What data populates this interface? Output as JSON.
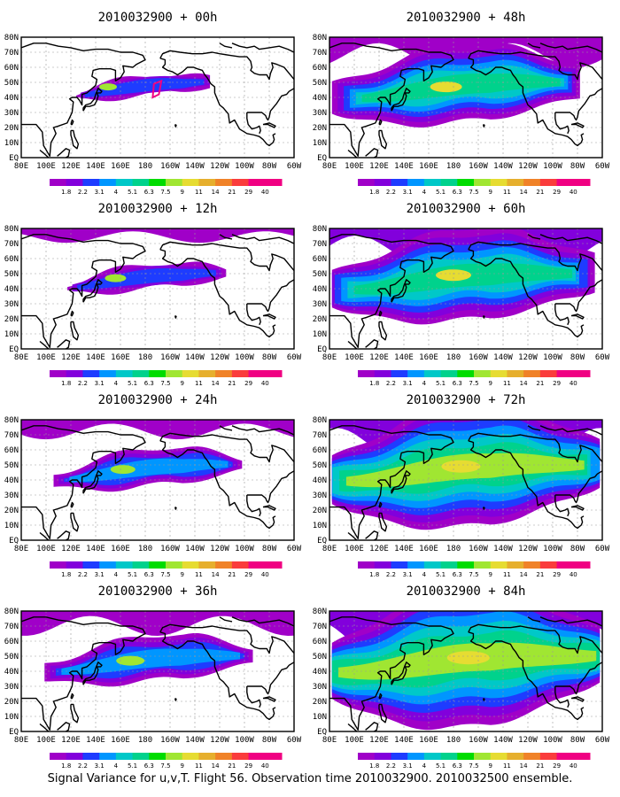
{
  "panels": [
    {
      "title": "2010032900 + 00h",
      "level": 0
    },
    {
      "title": "2010032900 + 48h",
      "level": 4
    },
    {
      "title": "2010032900 + 12h",
      "level": 1
    },
    {
      "title": "2010032900 + 60h",
      "level": 5
    },
    {
      "title": "2010032900 + 24h",
      "level": 2
    },
    {
      "title": "2010032900 + 72h",
      "level": 6
    },
    {
      "title": "2010032900 + 36h",
      "level": 3
    },
    {
      "title": "2010032900 + 84h",
      "level": 7
    }
  ],
  "lat_labels": [
    "80N",
    "70N",
    "60N",
    "50N",
    "40N",
    "30N",
    "20N",
    "10N",
    "EQ"
  ],
  "lon_labels": [
    "80E",
    "100E",
    "120E",
    "140E",
    "160E",
    "180",
    "160W",
    "140W",
    "120W",
    "100W",
    "80W",
    "60W"
  ],
  "colorbar": {
    "labels": [
      "1.8",
      "2.2",
      "3.1",
      "4",
      "5.1",
      "6.3",
      "7.5",
      "9",
      "11",
      "14",
      "21",
      "29",
      "40"
    ],
    "colors": [
      "#a000c8",
      "#8200dc",
      "#1e3cff",
      "#0096ff",
      "#00c8c8",
      "#00d28c",
      "#00dc00",
      "#a0e632",
      "#e6dc32",
      "#e6af2d",
      "#f08228",
      "#fa3c3c",
      "#f00082"
    ]
  },
  "footer": "Signal Variance for u,v,T. Flight 56. Observation time 2010032900. 2010032500 ensemble."
}
